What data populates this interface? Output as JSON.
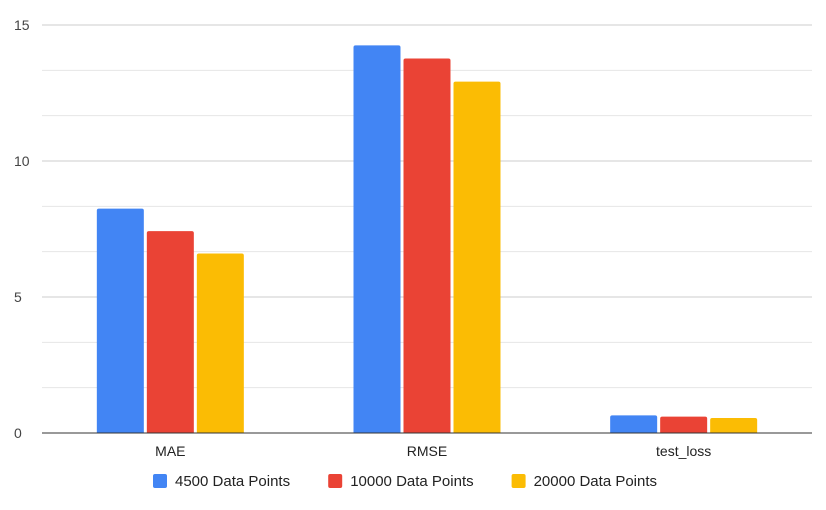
{
  "chart_data": {
    "type": "bar",
    "title": "",
    "xlabel": "",
    "ylabel": "",
    "categories": [
      "MAE",
      "RMSE",
      "test_loss"
    ],
    "ylim": [
      0,
      15
    ],
    "yticks": [
      0,
      5,
      10,
      15
    ],
    "minor_gridlines": true,
    "legend_position": "bottom",
    "series": [
      {
        "name": "4500 Data Points",
        "color": "#4285F4",
        "values": [
          8.25,
          14.25,
          0.65
        ]
      },
      {
        "name": "10000 Data Points",
        "color": "#EA4335",
        "values": [
          7.42,
          13.77,
          0.6
        ]
      },
      {
        "name": "20000 Data Points",
        "color": "#FBBC04",
        "values": [
          6.6,
          12.92,
          0.55
        ]
      }
    ]
  }
}
